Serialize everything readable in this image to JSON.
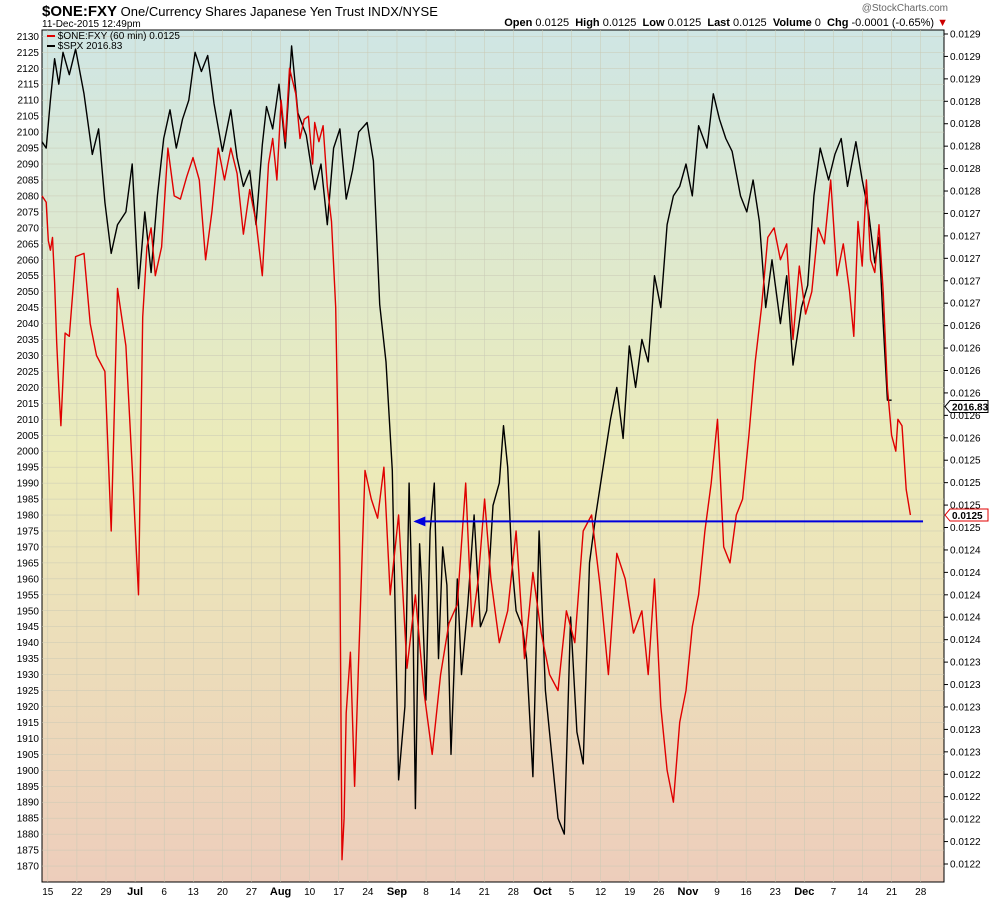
{
  "header": {
    "symbol": "$ONE:FXY",
    "description": "One/Currency Shares Japanese Yen Trust",
    "exchange": "INDX/NYSE",
    "date": "11-Dec-2015 12:49pm",
    "brand": "@StockCharts.com",
    "stats": [
      {
        "label": "Open",
        "value": "0.0125"
      },
      {
        "label": "High",
        "value": "0.0125"
      },
      {
        "label": "Low",
        "value": "0.0125"
      },
      {
        "label": "Last",
        "value": "0.0125"
      },
      {
        "label": "Volume",
        "value": "0"
      },
      {
        "label": "Chg",
        "value": "-0.0001 (-0.65%)"
      }
    ]
  },
  "chart_data": {
    "type": "line",
    "legend": [
      "$ONE:FXY (60 min) 0.0125",
      "$SPX 2016.83"
    ],
    "x_ticks": [
      "15",
      "22",
      "29",
      "Jul",
      "6",
      "13",
      "20",
      "27",
      "Aug",
      "10",
      "17",
      "24",
      "Sep",
      "8",
      "14",
      "21",
      "28",
      "Oct",
      "5",
      "12",
      "19",
      "26",
      "Nov",
      "9",
      "16",
      "23",
      "Dec",
      "7",
      "14",
      "21",
      "28"
    ],
    "left_axis": {
      "min": 1865,
      "max": 2132,
      "ticks": [
        2130,
        2125,
        2120,
        2115,
        2110,
        2105,
        2100,
        2095,
        2090,
        2085,
        2080,
        2075,
        2070,
        2065,
        2060,
        2055,
        2050,
        2045,
        2040,
        2035,
        2030,
        2025,
        2020,
        2015,
        2010,
        2005,
        2000,
        1995,
        1990,
        1985,
        1980,
        1975,
        1970,
        1965,
        1960,
        1955,
        1950,
        1945,
        1940,
        1935,
        1930,
        1925,
        1920,
        1915,
        1910,
        1905,
        1900,
        1895,
        1890,
        1885,
        1880,
        1875,
        1870
      ]
    },
    "right_axis_labels": [
      "0.0129",
      "0.0129",
      "0.0129",
      "0.0128",
      "0.0128",
      "0.0128",
      "0.0128",
      "0.0128",
      "0.0127",
      "0.0127",
      "0.0127",
      "0.0127",
      "0.0127",
      "0.0126",
      "0.0126",
      "0.0126",
      "0.0126",
      "0.0126",
      "0.0126",
      "0.0125",
      "0.0125",
      "0.0125",
      "0.0125",
      "0.0124",
      "0.0124",
      "0.0124",
      "0.0124",
      "0.0124",
      "0.0123",
      "0.0123",
      "0.0123",
      "0.0123",
      "0.0123",
      "0.0122",
      "0.0122",
      "0.0122",
      "0.0122",
      "0.0122"
    ],
    "last_spx_label": "2016.83",
    "last_fxy_label": "0.0125",
    "series": [
      {
        "name": "$SPX 2016.83",
        "color": "#000000",
        "x": [
          0,
          2,
          4,
          6,
          8,
          10,
          13,
          16,
          20,
          24,
          27,
          30,
          33,
          36,
          40,
          43,
          46,
          49,
          52,
          55,
          58,
          61,
          64,
          67,
          70,
          73,
          76,
          79,
          82,
          86,
          90,
          93,
          96,
          99,
          102,
          105,
          107,
          110,
          113,
          116,
          119,
          122,
          126,
          130,
          133,
          136,
          139,
          142,
          145,
          148,
          151,
          155,
          158,
          161,
          164,
          167,
          170,
          173,
          175,
          177,
          178,
          180,
          181,
          183,
          185,
          187,
          189,
          191,
          193,
          195,
          198,
          200,
          203,
          206,
          209,
          212,
          215,
          218,
          220,
          222,
          224,
          226,
          229,
          231,
          234,
          237,
          240,
          243,
          246,
          249,
          252,
          255,
          258,
          261,
          264,
          267,
          271,
          274,
          277,
          280,
          283,
          286,
          289,
          292,
          295,
          298,
          301,
          304,
          307,
          310,
          313,
          317,
          320,
          323,
          326,
          329,
          333,
          336,
          339,
          342,
          345,
          348,
          352,
          355,
          358,
          362,
          365,
          368,
          371,
          375,
          378,
          381,
          384,
          388,
          391,
          394,
          397,
          399,
          401,
          403,
          405
        ],
        "y": [
          2097,
          2095,
          2110,
          2123,
          2115,
          2125,
          2118,
          2126,
          2112,
          2093,
          2101,
          2078,
          2062,
          2071,
          2075,
          2090,
          2051,
          2075,
          2056,
          2080,
          2098,
          2107,
          2095,
          2104,
          2110,
          2125,
          2119,
          2124,
          2109,
          2094,
          2107,
          2092,
          2083,
          2088,
          2071,
          2096,
          2108,
          2101,
          2115,
          2095,
          2127,
          2106,
          2099,
          2082,
          2090,
          2071,
          2095,
          2101,
          2079,
          2088,
          2100,
          2103,
          2091,
          2046,
          2028,
          1994,
          1897,
          1920,
          1990,
          1940,
          1888,
          1971,
          1958,
          1922,
          1975,
          1990,
          1935,
          1970,
          1958,
          1905,
          1960,
          1930,
          1952,
          1980,
          1945,
          1950,
          1983,
          1990,
          2008,
          1995,
          1965,
          1950,
          1945,
          1935,
          1898,
          1975,
          1925,
          1905,
          1885,
          1880,
          1948,
          1912,
          1902,
          1965,
          1980,
          1993,
          2010,
          2020,
          2004,
          2033,
          2020,
          2035,
          2028,
          2055,
          2045,
          2071,
          2080,
          2083,
          2090,
          2080,
          2102,
          2095,
          2112,
          2104,
          2098,
          2094,
          2080,
          2075,
          2085,
          2072,
          2045,
          2060,
          2040,
          2055,
          2027,
          2045,
          2052,
          2080,
          2095,
          2085,
          2093,
          2098,
          2083,
          2097,
          2085,
          2075,
          2059,
          2067,
          2040,
          2016,
          2016
        ]
      },
      {
        "name": "$ONE:FXY (60 min) 0.0125",
        "color": "#e00000",
        "x": [
          0,
          2,
          3,
          4,
          5,
          6,
          7,
          8,
          9,
          11,
          13,
          16,
          20,
          23,
          26,
          30,
          33,
          36,
          40,
          43,
          46,
          48,
          50,
          52,
          54,
          57,
          60,
          63,
          66,
          69,
          72,
          75,
          78,
          81,
          84,
          87,
          90,
          93,
          96,
          99,
          102,
          105,
          108,
          110,
          112,
          114,
          116,
          118,
          121,
          123,
          125,
          127,
          129,
          130,
          132,
          134,
          136,
          138,
          140,
          141,
          142,
          143,
          144,
          145,
          147,
          149,
          151,
          154,
          157,
          160,
          163,
          166,
          170,
          174,
          178,
          182,
          186,
          190,
          194,
          198,
          202,
          205,
          208,
          211,
          214,
          218,
          222,
          226,
          230,
          234,
          238,
          242,
          246,
          250,
          254,
          258,
          262,
          266,
          270,
          274,
          278,
          282,
          286,
          289,
          292,
          295,
          298,
          301,
          304,
          307,
          310,
          313,
          316,
          319,
          322,
          325,
          328,
          331,
          334,
          337,
          340,
          343,
          346,
          349,
          352,
          355,
          358,
          361,
          364,
          367,
          370,
          373,
          376,
          379,
          382,
          385,
          387,
          389,
          391,
          393,
          395,
          397,
          399,
          401,
          403,
          405,
          407,
          408,
          410,
          412,
          414
        ],
        "y": [
          2080,
          2078,
          2066,
          2063,
          2067,
          2053,
          2034,
          2020,
          2008,
          2037,
          2036,
          2061,
          2062,
          2040,
          2030,
          2025,
          1975,
          2051,
          2033,
          1995,
          1955,
          2042,
          2064,
          2070,
          2055,
          2064,
          2095,
          2080,
          2079,
          2086,
          2092,
          2085,
          2060,
          2075,
          2095,
          2085,
          2095,
          2087,
          2068,
          2082,
          2072,
          2055,
          2090,
          2098,
          2085,
          2110,
          2097,
          2120,
          2112,
          2098,
          2104,
          2105,
          2090,
          2103,
          2097,
          2102,
          2083,
          2072,
          2045,
          2008,
          1963,
          1872,
          1885,
          1918,
          1937,
          1895,
          1935,
          1994,
          1985,
          1979,
          1995,
          1955,
          1980,
          1932,
          1955,
          1925,
          1905,
          1930,
          1946,
          1952,
          1990,
          1945,
          1960,
          1985,
          1960,
          1940,
          1950,
          1975,
          1935,
          1962,
          1943,
          1930,
          1925,
          1950,
          1940,
          1975,
          1980,
          1958,
          1930,
          1968,
          1960,
          1943,
          1950,
          1930,
          1960,
          1920,
          1900,
          1890,
          1915,
          1925,
          1945,
          1955,
          1975,
          1990,
          2010,
          1970,
          1965,
          1980,
          1985,
          2005,
          2028,
          2045,
          2067,
          2070,
          2060,
          2065,
          2035,
          2058,
          2043,
          2050,
          2070,
          2065,
          2085,
          2055,
          2065,
          2050,
          2036,
          2072,
          2058,
          2085,
          2060,
          2056,
          2071,
          2050,
          2020,
          2005,
          2000,
          2010,
          2008,
          1988,
          1980
        ]
      }
    ],
    "arrow": {
      "from_x": 420,
      "to_x": 178,
      "y": 1978,
      "color": "#0000dd"
    }
  }
}
